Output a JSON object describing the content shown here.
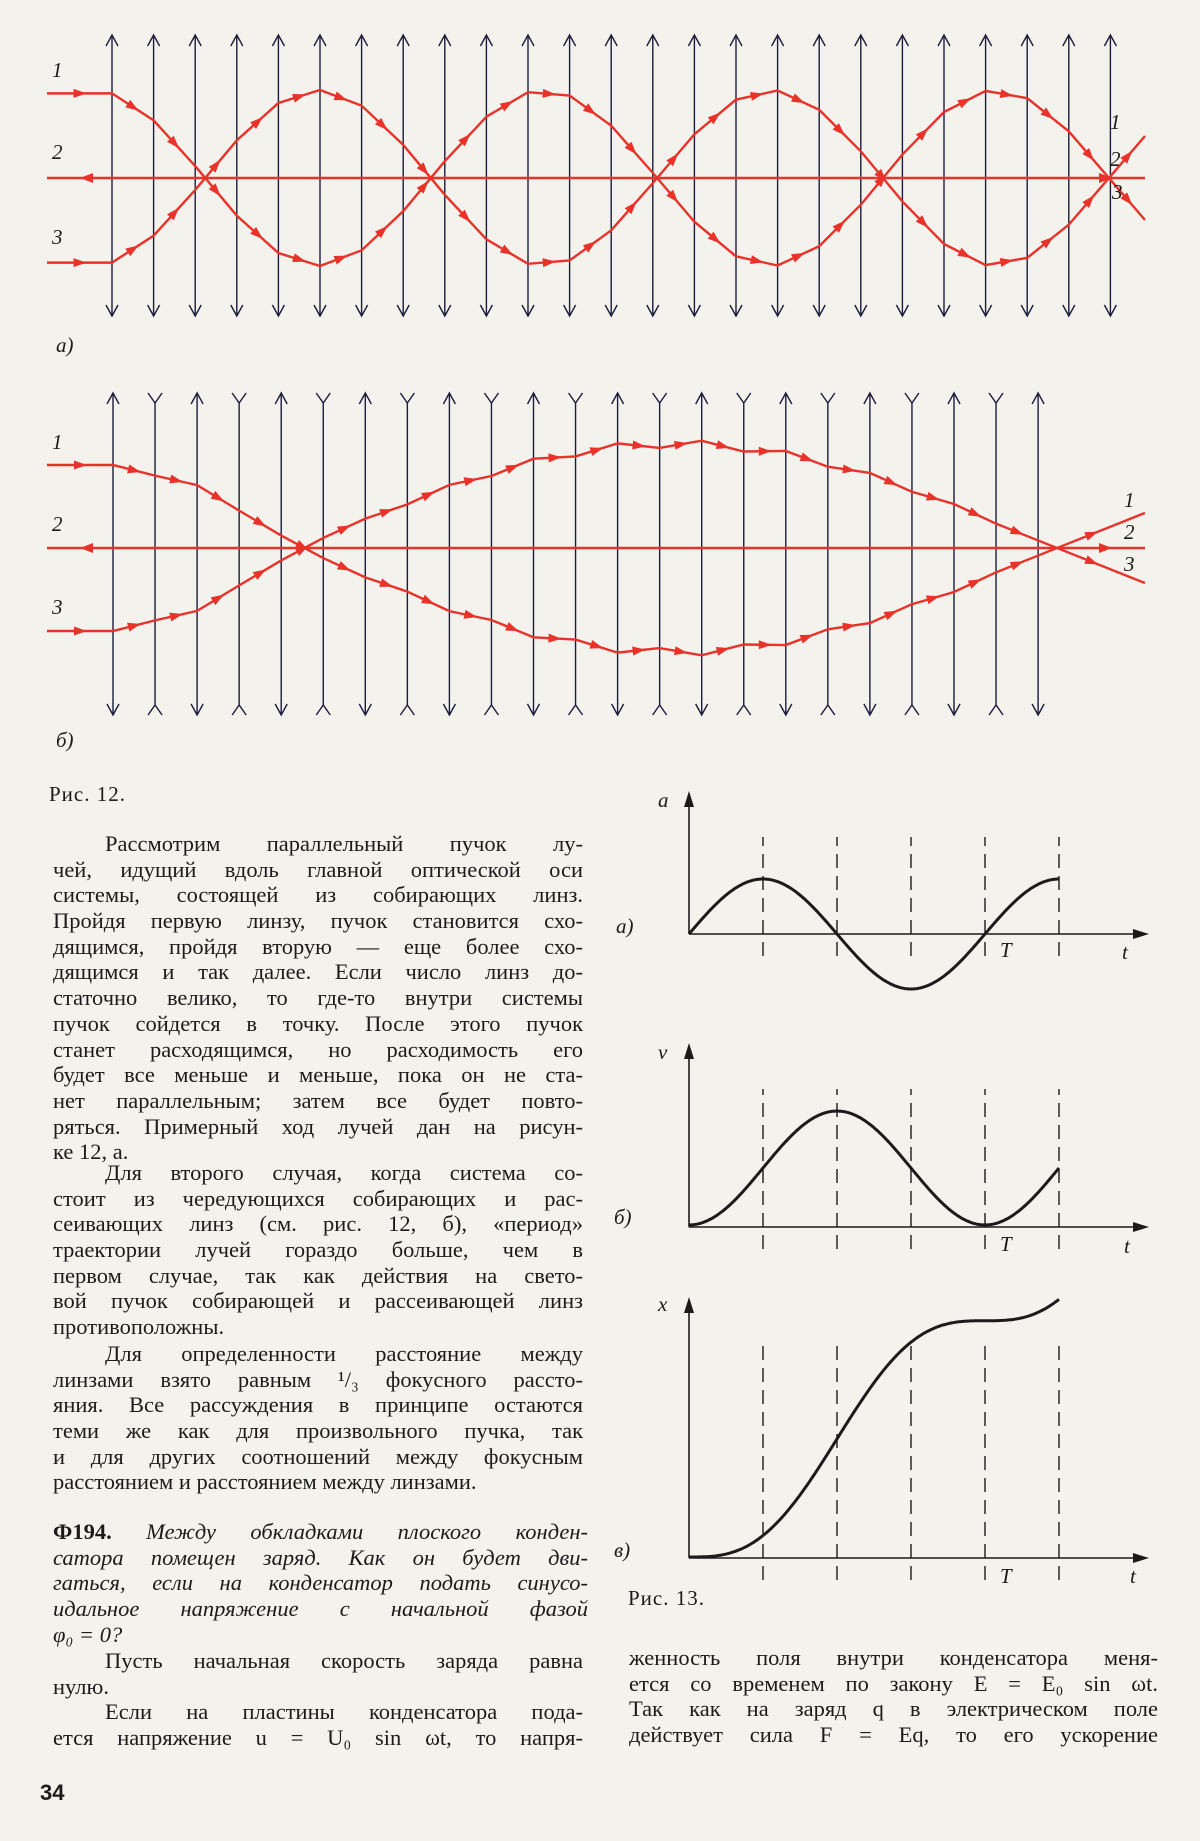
{
  "colors": {
    "ray": "#e8322a",
    "lens": "#1c1c3c",
    "paper": "#f3f2ec",
    "ink": "#1b1b1b"
  },
  "figure12": {
    "caption": "Рис. 12.",
    "panel_a": {
      "label": "а)",
      "left_labels": [
        "1",
        "2",
        "3"
      ],
      "right_labels": [
        "1",
        "2",
        "3"
      ],
      "lens_type": "converging",
      "lens_count": 25
    },
    "panel_b": {
      "label": "б)",
      "left_labels": [
        "1",
        "2",
        "3"
      ],
      "right_labels": [
        "1",
        "2",
        "3"
      ],
      "lens_type": "alternating converging/diverging",
      "lens_count": 23
    }
  },
  "figure13": {
    "caption": "Рис. 13.",
    "panels": [
      {
        "label": "а)",
        "y_axis": "a",
        "x_axis": "t",
        "period_label": "T"
      },
      {
        "label": "б)",
        "y_axis": "v",
        "x_axis": "t",
        "period_label": "T"
      },
      {
        "label": "в)",
        "y_axis": "x",
        "x_axis": "t",
        "period_label": "T"
      }
    ]
  },
  "left_column": {
    "paragraphs": [
      {
        "lines": [
          "Рассмотрим параллельный пучок лу-",
          "чей, идущий вдоль главной оптической оси",
          "системы, состоящей из собирающих линз.",
          "Пройдя первую линзу, пучок становится схо-",
          "дящимся, пройдя вторую — еще более схо-",
          "дящимся и так далее. Если число линз до-",
          "статочно велико, то где-то внутри системы",
          "пучок сойдется в точку. После этого пучок",
          "станет расходящимся, но расходимость его",
          "будет все меньше и меньше, пока он не ста-",
          "нет параллельным; затем все будет повто-",
          "ряться. Примерный ход лучей дан на рисун-",
          "ке 12, а."
        ]
      },
      {
        "lines": [
          "Для второго случая, когда система со-",
          "стоит из чередующихся собирающих и рас-",
          "сеивающих линз (см. рис. 12, б), «период»",
          "траектории лучей гораздо больше, чем в",
          "первом случае, так как действия на свето-",
          "вой пучок собирающей и рассеивающей линз",
          "противоположны."
        ]
      },
      {
        "lines": [
          "Для определенности расстояние между",
          "линзами взято равным ¹/₃ фокусного рассто-",
          "яния. Все рассуждения в принципе остаются",
          "теми же как для произвольного пучка, так",
          "и для других соотношений между фокусным",
          "расстоянием и расстоянием между линзами."
        ]
      }
    ],
    "problem": {
      "number": "Ф194.",
      "lines": [
        "Между обкладками плоского конден-",
        "сатора помещен заряд. Как он будет дви-",
        "гаться, если на конденсатор подать синусо-",
        "идальное напряжение с начальной фазой",
        "φ₀ = 0?"
      ]
    },
    "solution": [
      {
        "lines": [
          "Пусть начальная скорость заряда равна",
          "нулю."
        ]
      },
      {
        "lines": [
          "Если на пластины конденсатора пода-",
          "ется напряжение u = U₀ sin ωt, то напря-"
        ],
        "continues": true
      }
    ]
  },
  "right_column": {
    "lines": [
      "женность поля внутри конденсатора меня-",
      "ется со временем по закону E = E₀ sin ωt.",
      "Так как на заряд q в электрическом поле",
      "действует сила F = Eq, то его ускорение"
    ]
  },
  "page_number": "34"
}
